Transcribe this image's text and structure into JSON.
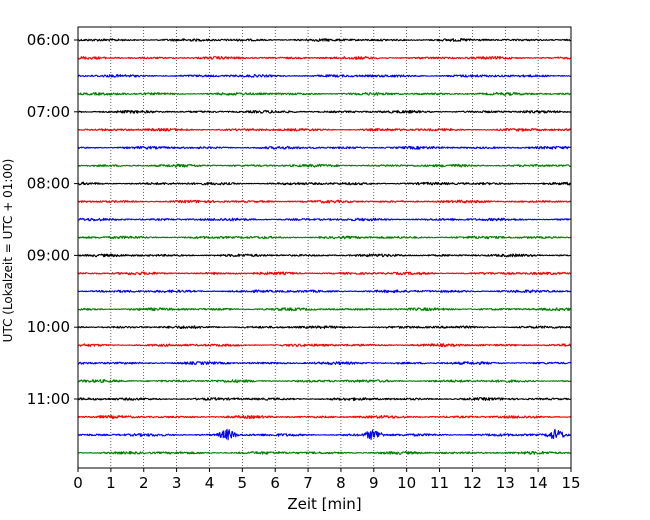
{
  "chart_data": {
    "type": "line",
    "title": "",
    "xlabel": "Zeit  [min]",
    "ylabel": "UTC (Lokalzeit = UTC + 01:00)",
    "xlim": [
      0,
      15
    ],
    "x_ticks": [
      "0",
      "1",
      "2",
      "3",
      "4",
      "5",
      "6",
      "7",
      "8",
      "9",
      "10",
      "11",
      "12",
      "13",
      "14",
      "15"
    ],
    "y_ticks": [
      "06:00",
      "07:00",
      "08:00",
      "09:00",
      "10:00",
      "11:00"
    ],
    "grid": "vertical dotted at each minute",
    "trace_duration_min": 15,
    "trace_colors": [
      "#000000",
      "#ff0000",
      "#0000ff",
      "#008000"
    ],
    "traces": [
      {
        "start": "06:00",
        "color": "#000000"
      },
      {
        "start": "06:15",
        "color": "#ff0000"
      },
      {
        "start": "06:30",
        "color": "#0000ff"
      },
      {
        "start": "06:45",
        "color": "#008000"
      },
      {
        "start": "07:00",
        "color": "#000000"
      },
      {
        "start": "07:15",
        "color": "#ff0000"
      },
      {
        "start": "07:30",
        "color": "#0000ff"
      },
      {
        "start": "07:45",
        "color": "#008000"
      },
      {
        "start": "08:00",
        "color": "#000000"
      },
      {
        "start": "08:15",
        "color": "#ff0000"
      },
      {
        "start": "08:30",
        "color": "#0000ff"
      },
      {
        "start": "08:45",
        "color": "#008000"
      },
      {
        "start": "09:00",
        "color": "#000000"
      },
      {
        "start": "09:15",
        "color": "#ff0000"
      },
      {
        "start": "09:30",
        "color": "#0000ff"
      },
      {
        "start": "09:45",
        "color": "#008000"
      },
      {
        "start": "10:00",
        "color": "#000000"
      },
      {
        "start": "10:15",
        "color": "#ff0000"
      },
      {
        "start": "10:30",
        "color": "#0000ff"
      },
      {
        "start": "10:45",
        "color": "#008000"
      },
      {
        "start": "11:00",
        "color": "#000000"
      },
      {
        "start": "11:15",
        "color": "#ff0000"
      },
      {
        "start": "11:30",
        "color": "#0000ff"
      },
      {
        "start": "11:45",
        "color": "#008000"
      }
    ],
    "events": [
      {
        "trace": "11:30",
        "x_min": 4.55
      },
      {
        "trace": "11:30",
        "x_min": 9.0
      },
      {
        "trace": "11:30",
        "x_min": 14.55
      }
    ]
  }
}
